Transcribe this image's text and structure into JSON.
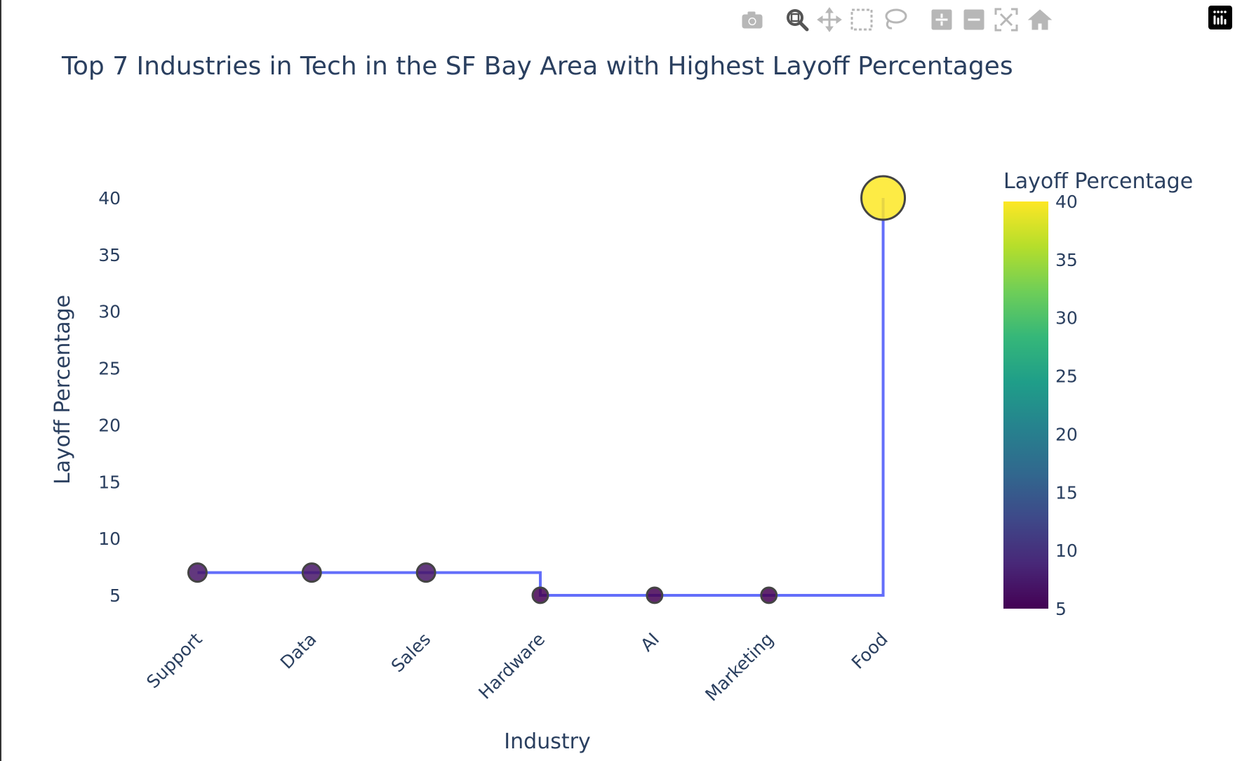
{
  "modebar": {
    "buttons": [
      {
        "icon": "camera-icon",
        "label": "Download plot as a png"
      },
      {
        "icon": "zoom-icon",
        "label": "Zoom"
      },
      {
        "icon": "pan-icon",
        "label": "Pan"
      },
      {
        "icon": "box-select-icon",
        "label": "Box Select"
      },
      {
        "icon": "lasso-select-icon",
        "label": "Lasso Select"
      },
      {
        "icon": "zoom-in-icon",
        "label": "Zoom in"
      },
      {
        "icon": "zoom-out-icon",
        "label": "Zoom out"
      },
      {
        "icon": "autoscale-icon",
        "label": "Autoscale"
      },
      {
        "icon": "reset-axes-icon",
        "label": "Reset axes"
      }
    ],
    "logo_icon": "plotly-logo-icon",
    "icon_color": "#b7b7b7",
    "active_icon_color": "#555555"
  },
  "chart_data": {
    "type": "line",
    "line_shape": "step",
    "title": "Top 7 Industries in Tech in the SF Bay Area with Highest Layoff Percentages",
    "xlabel": "Industry",
    "ylabel": "Layoff Percentage",
    "categories": [
      "Support",
      "Data",
      "Sales",
      "Hardware",
      "AI",
      "Marketing",
      "Food"
    ],
    "values": [
      7,
      7,
      7,
      5,
      5,
      5,
      40
    ],
    "yticks": [
      5,
      10,
      15,
      20,
      25,
      30,
      35,
      40
    ],
    "ylim": [
      2.4,
      42.6
    ],
    "marker_size_scaled_by_value": true,
    "line_color": "#636efa",
    "marker_outline_color": "#444444",
    "colorscale": "Viridis",
    "colorbar": {
      "title": "Layoff Percentage",
      "ticks": [
        5,
        10,
        15,
        20,
        25,
        30,
        35,
        40
      ],
      "range": [
        5,
        40
      ]
    },
    "grid": false,
    "background": "#ffffff"
  }
}
